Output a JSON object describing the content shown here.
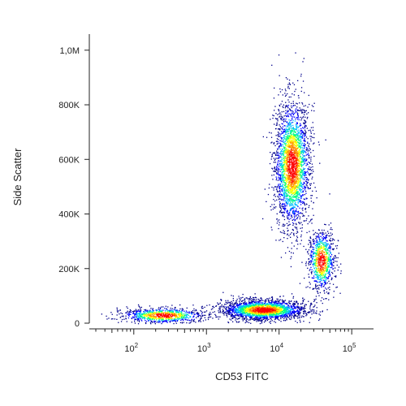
{
  "chart_data": {
    "type": "scatter",
    "title": "",
    "xlabel": "CD53 FITC",
    "ylabel": "Side Scatter",
    "x_scale": "log",
    "xlim": [
      30,
      180000
    ],
    "ylim": [
      0,
      1050000
    ],
    "x_major_ticks": [
      {
        "value": 100,
        "base": "10",
        "exp": "2"
      },
      {
        "value": 1000,
        "base": "10",
        "exp": "3"
      },
      {
        "value": 10000,
        "base": "10",
        "exp": "4"
      },
      {
        "value": 100000,
        "base": "10",
        "exp": "5"
      }
    ],
    "y_ticks": [
      {
        "value": 0,
        "label": "0"
      },
      {
        "value": 200000,
        "label": "200K"
      },
      {
        "value": 400000,
        "label": "400K"
      },
      {
        "value": 600000,
        "label": "600K"
      },
      {
        "value": 800000,
        "label": "800K"
      },
      {
        "value": 1000000,
        "label": "1,0M"
      }
    ],
    "colormap": [
      "#00008b",
      "#0000ff",
      "#00bfff",
      "#00ff7f",
      "#ffff00",
      "#ff8c00",
      "#ff0000"
    ],
    "populations": [
      {
        "x_center": 15000,
        "y_center": 580000,
        "x_spread": 0.12,
        "y_spread": 115000,
        "tilt": 0.0,
        "count": 2600
      },
      {
        "x_center": 38000,
        "y_center": 230000,
        "x_spread": 0.09,
        "y_spread": 55000,
        "tilt": 0.0,
        "count": 900
      },
      {
        "x_center": 6000,
        "y_center": 50000,
        "x_spread": 0.28,
        "y_spread": 18000,
        "tilt": 0.0,
        "count": 2400
      },
      {
        "x_center": 250,
        "y_center": 30000,
        "x_spread": 0.28,
        "y_spread": 14000,
        "tilt": 0.0,
        "count": 900
      }
    ]
  }
}
